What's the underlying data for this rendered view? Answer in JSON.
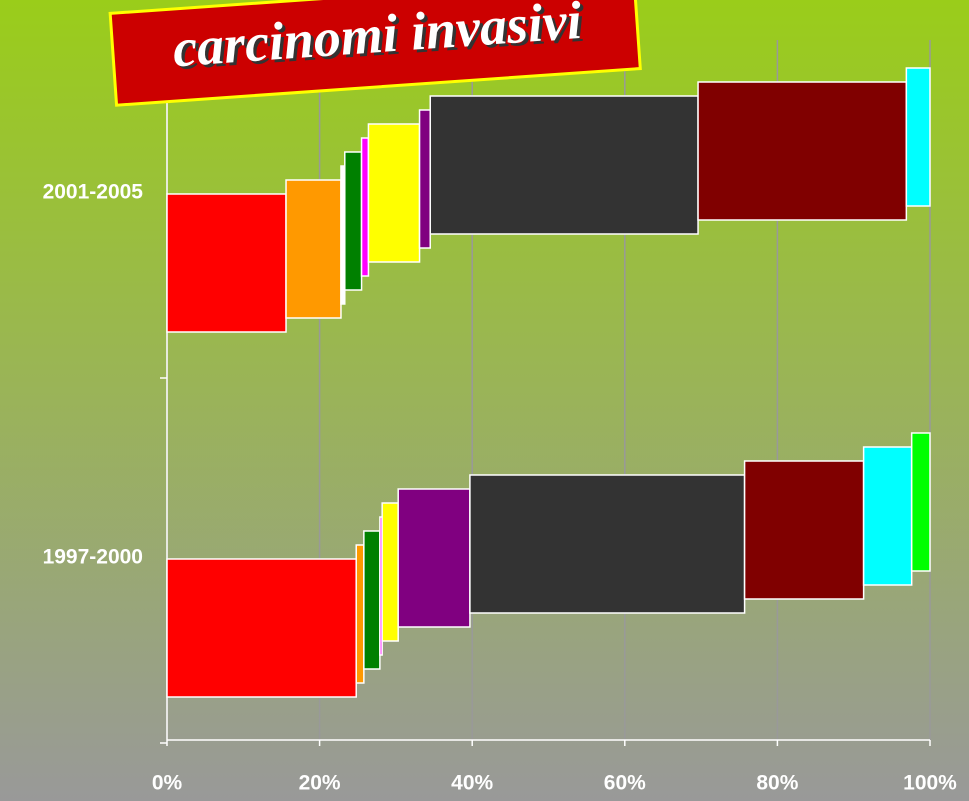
{
  "chart_data": {
    "type": "bar",
    "orientation": "horizontal",
    "stacked": true,
    "title": "carcinomi invasivi",
    "categories": [
      "2001-2005",
      "1997-2000"
    ],
    "series": [
      {
        "color": "#ff0000",
        "values": [
          15.6,
          24.8
        ]
      },
      {
        "color": "#ff9900",
        "values": [
          7.2,
          1.0
        ]
      },
      {
        "color": "#ffffff",
        "values": [
          0.5,
          0
        ]
      },
      {
        "color": "#008000",
        "values": [
          2.2,
          2.1
        ]
      },
      {
        "color": "#ff00ff",
        "values": [
          0.9,
          0.3
        ]
      },
      {
        "color": "#ffff00",
        "values": [
          6.7,
          2.1
        ]
      },
      {
        "color": "#800080",
        "values": [
          1.4,
          9.4
        ]
      },
      {
        "color": "#333333",
        "values": [
          35.1,
          36.0
        ]
      },
      {
        "color": "#800000",
        "values": [
          27.3,
          15.6
        ]
      },
      {
        "color": "#00ffff",
        "values": [
          3.1,
          6.3
        ]
      },
      {
        "color": "#00ff00",
        "values": [
          0,
          2.4
        ]
      }
    ],
    "xlim": [
      0,
      100
    ],
    "xticks": [
      {
        "value": 0,
        "label": "0%"
      },
      {
        "value": 20,
        "label": "20%"
      },
      {
        "value": 40,
        "label": "40%"
      },
      {
        "value": 60,
        "label": "60%"
      },
      {
        "value": 80,
        "label": "80%"
      },
      {
        "value": 100,
        "label": "100%"
      }
    ],
    "grid": true
  }
}
